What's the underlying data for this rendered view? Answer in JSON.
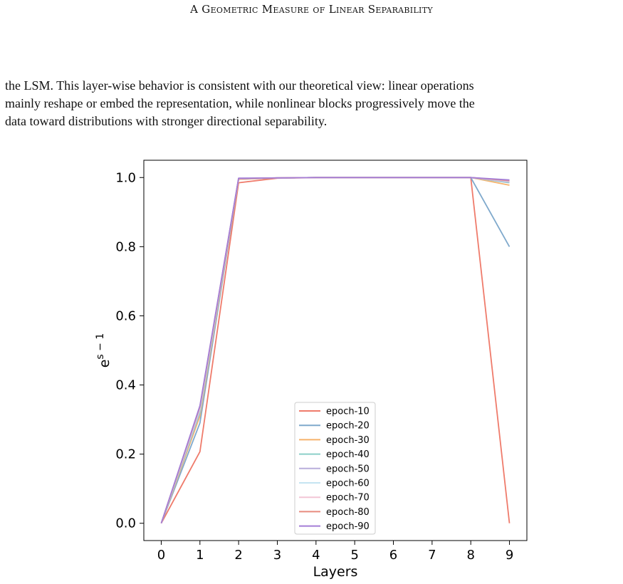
{
  "running_head": "A Geometric Measure of Linear Separability",
  "paragraph_lines": [
    "the LSM. This layer-wise behavior is consistent with our theoretical view: linear operations",
    "mainly reshape or embed the representation, while nonlinear blocks progressively move the",
    "data toward distributions with stronger directional separability."
  ],
  "chart_data": {
    "type": "line",
    "xlabel": "Layers",
    "ylabel": "e^(s−1)",
    "ylabel_base": "e",
    "ylabel_exponent": "s − 1",
    "x": [
      0,
      1,
      2,
      3,
      4,
      5,
      6,
      7,
      8,
      9
    ],
    "xticks": [
      "0",
      "1",
      "2",
      "3",
      "4",
      "5",
      "6",
      "7",
      "8",
      "9"
    ],
    "yticks": [
      "0.0",
      "0.2",
      "0.4",
      "0.6",
      "0.8",
      "1.0"
    ],
    "xlim": [
      -0.45,
      9.45
    ],
    "ylim": [
      -0.05,
      1.05
    ],
    "legend_position": "lower center",
    "grid": false,
    "series": [
      {
        "name": "epoch-10",
        "color": "#ef7b6b",
        "values": [
          0.0,
          0.207,
          0.985,
          0.998,
          1.0,
          1.0,
          1.0,
          1.0,
          1.0,
          0.0
        ]
      },
      {
        "name": "epoch-20",
        "color": "#7fa9cc",
        "values": [
          0.0,
          0.29,
          0.995,
          0.999,
          1.0,
          1.0,
          1.0,
          1.0,
          1.0,
          0.8
        ]
      },
      {
        "name": "epoch-30",
        "color": "#f6b26b",
        "values": [
          0.0,
          0.31,
          0.995,
          0.999,
          1.0,
          1.0,
          1.0,
          1.0,
          1.0,
          0.978
        ]
      },
      {
        "name": "epoch-40",
        "color": "#8ccfc9",
        "values": [
          0.0,
          0.32,
          0.996,
          0.999,
          1.0,
          1.0,
          1.0,
          1.0,
          1.0,
          0.985
        ]
      },
      {
        "name": "epoch-50",
        "color": "#b9aedc",
        "values": [
          0.0,
          0.325,
          0.996,
          0.999,
          1.0,
          1.0,
          1.0,
          1.0,
          1.0,
          0.987
        ]
      },
      {
        "name": "epoch-60",
        "color": "#c5e4f2",
        "values": [
          0.0,
          0.33,
          0.997,
          0.999,
          1.0,
          1.0,
          1.0,
          1.0,
          1.0,
          0.989
        ]
      },
      {
        "name": "epoch-70",
        "color": "#f3c6d5",
        "values": [
          0.0,
          0.335,
          0.997,
          0.999,
          1.0,
          1.0,
          1.0,
          1.0,
          1.0,
          0.99
        ]
      },
      {
        "name": "epoch-80",
        "color": "#e88b7e",
        "values": [
          0.0,
          0.337,
          0.997,
          0.999,
          1.0,
          1.0,
          1.0,
          1.0,
          1.0,
          0.991
        ]
      },
      {
        "name": "epoch-90",
        "color": "#a47ed6",
        "values": [
          0.0,
          0.34,
          0.998,
          0.999,
          1.0,
          1.0,
          1.0,
          1.0,
          1.0,
          0.993
        ]
      }
    ]
  }
}
